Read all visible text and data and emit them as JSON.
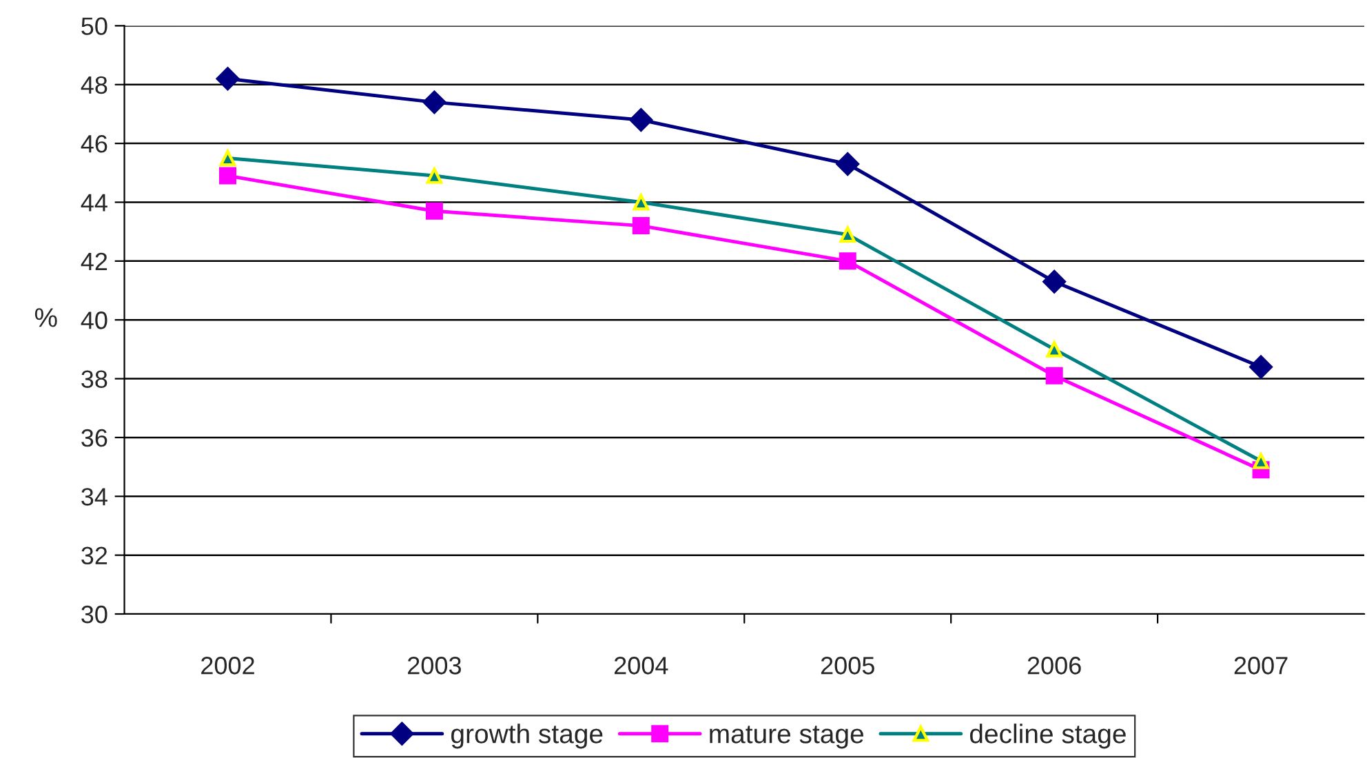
{
  "chart_data": {
    "type": "line",
    "ylabel": "%",
    "categories": [
      "2002",
      "2003",
      "2004",
      "2005",
      "2006",
      "2007"
    ],
    "series": [
      {
        "name": "growth stage",
        "color": "#000080",
        "marker": "diamond",
        "values": [
          48.2,
          47.4,
          46.8,
          45.3,
          41.3,
          38.4
        ]
      },
      {
        "name": "mature stage",
        "color": "#ff00ff",
        "marker": "square",
        "values": [
          44.9,
          43.7,
          43.2,
          42.0,
          38.1,
          34.9
        ]
      },
      {
        "name": "decline stage",
        "color": "#008080",
        "marker": "triangle",
        "values": [
          45.5,
          44.9,
          44.0,
          42.9,
          39.0,
          35.2
        ]
      }
    ],
    "ylim": [
      30,
      50
    ],
    "yticks": [
      30,
      32,
      34,
      36,
      38,
      40,
      42,
      44,
      46,
      48,
      50
    ],
    "grid": "y",
    "legend": "bottom"
  }
}
